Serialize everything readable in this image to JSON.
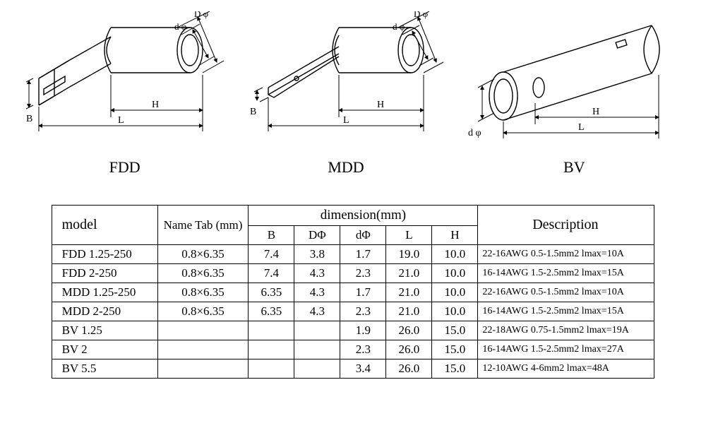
{
  "diagrams": {
    "fdd": {
      "label": "FDD",
      "dim_labels": [
        "D φ",
        "d φ",
        "H",
        "L",
        "B"
      ]
    },
    "mdd": {
      "label": "MDD",
      "dim_labels": [
        "D φ",
        "d φ",
        "H",
        "L",
        "B"
      ]
    },
    "bv": {
      "label": "BV",
      "dim_labels": [
        "H",
        "L",
        "d φ"
      ]
    }
  },
  "table": {
    "headers": {
      "model": "model",
      "name_tab": "Name Tab (mm)",
      "dimension_group": "dimension(mm)",
      "B": "B",
      "DPhi": "DΦ",
      "dPhi": "dΦ",
      "L": "L",
      "H": "H",
      "description": "Description"
    },
    "rows": [
      {
        "model": "FDD 1.25-250",
        "tab": "0.8×6.35",
        "B": "7.4",
        "DPhi": "3.8",
        "dPhi": "1.7",
        "L": "19.0",
        "H": "10.0",
        "desc": "22-16AWG 0.5-1.5mm2 lmax=10A"
      },
      {
        "model": "FDD 2-250",
        "tab": "0.8×6.35",
        "B": "7.4",
        "DPhi": "4.3",
        "dPhi": "2.3",
        "L": "21.0",
        "H": "10.0",
        "desc": "16-14AWG 1.5-2.5mm2 lmax=15A"
      },
      {
        "model": "MDD 1.25-250",
        "tab": "0.8×6.35",
        "B": "6.35",
        "DPhi": "4.3",
        "dPhi": "1.7",
        "L": "21.0",
        "H": "10.0",
        "desc": "22-16AWG 0.5-1.5mm2 lmax=10A"
      },
      {
        "model": "MDD 2-250",
        "tab": "0.8×6.35",
        "B": "6.35",
        "DPhi": "4.3",
        "dPhi": "2.3",
        "L": "21.0",
        "H": "10.0",
        "desc": "16-14AWG 1.5-2.5mm2 lmax=15A"
      },
      {
        "model": "BV 1.25",
        "tab": "",
        "B": "",
        "DPhi": "",
        "dPhi": "1.9",
        "L": "26.0",
        "H": "15.0",
        "desc": "22-18AWG 0.75-1.5mm2 lmax=19A"
      },
      {
        "model": "BV 2",
        "tab": "",
        "B": "",
        "DPhi": "",
        "dPhi": "2.3",
        "L": "26.0",
        "H": "15.0",
        "desc": "16-14AWG 1.5-2.5mm2 lmax=27A"
      },
      {
        "model": "BV 5.5",
        "tab": "",
        "B": "",
        "DPhi": "",
        "dPhi": "3.4",
        "L": "26.0",
        "H": "15.0",
        "desc": "12-10AWG   4-6mm2   lmax=48A"
      }
    ]
  },
  "style": {
    "stroke": "#000000",
    "stroke_width": 1.5,
    "font": "Times New Roman",
    "font_size_label": 22,
    "font_size_dim": 13,
    "arrow_size": 5
  }
}
